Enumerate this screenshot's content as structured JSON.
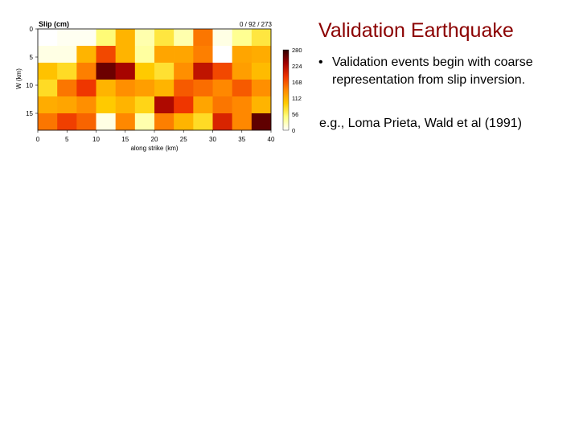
{
  "slide": {
    "title": "Validation Earthquake",
    "bullet": "Validation events begin with coarse representation from slip inversion.",
    "bullet_marker": "•",
    "reference": "e.g., Loma Prieta, Wald et al (1991)"
  },
  "chart_data": {
    "type": "heatmap",
    "title": "Slip (cm)",
    "range_label": "0 / 92 / 273",
    "xlabel": "along strike (km)",
    "ylabel": "W (km)",
    "x_ticks": [
      0,
      5,
      10,
      15,
      20,
      25,
      30,
      35,
      40
    ],
    "y_ticks": [
      0,
      5,
      10,
      15
    ],
    "xlim": [
      0,
      40
    ],
    "ylim": [
      0,
      18
    ],
    "colorbar_ticks": [
      0,
      56,
      112,
      168,
      224,
      280
    ],
    "colorbar_range": [
      0,
      280
    ],
    "colormap": [
      "#ffffff",
      "#ffff80",
      "#ffcc00",
      "#ff8800",
      "#ee3300",
      "#a00000",
      "#300000"
    ],
    "cells": [
      [
        0,
        5,
        5,
        50,
        110,
        30,
        70,
        30,
        150,
        10,
        40,
        70
      ],
      [
        10,
        10,
        110,
        175,
        110,
        35,
        120,
        120,
        145,
        0,
        120,
        115
      ],
      [
        100,
        80,
        145,
        255,
        230,
        95,
        75,
        135,
        215,
        175,
        125,
        105
      ],
      [
        80,
        150,
        185,
        110,
        135,
        125,
        110,
        165,
        155,
        140,
        165,
        135
      ],
      [
        115,
        120,
        135,
        95,
        110,
        85,
        225,
        185,
        120,
        150,
        140,
        110
      ],
      [
        150,
        180,
        160,
        10,
        140,
        30,
        145,
        110,
        80,
        200,
        140,
        260
      ]
    ]
  }
}
